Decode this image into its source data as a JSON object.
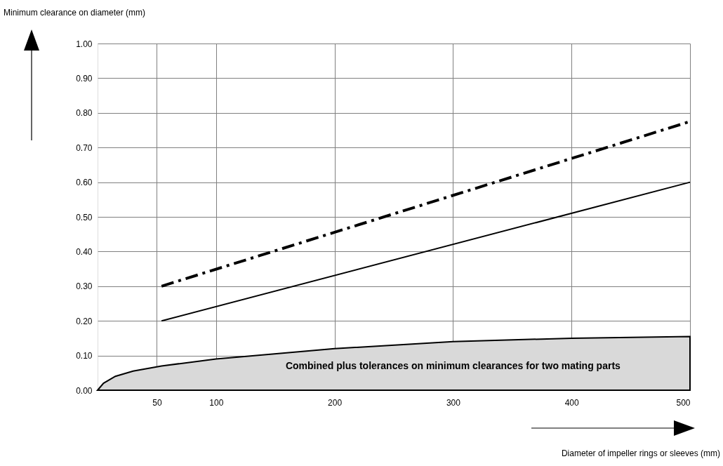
{
  "chart_data": {
    "type": "line",
    "xlabel": "Diameter of impeller rings or sleeves (mm)",
    "ylabel": "Minimum clearance on diameter (mm)",
    "xlim": [
      0,
      500
    ],
    "xticks": [
      50,
      100,
      200,
      300,
      400,
      500
    ],
    "ylim": [
      0,
      1
    ],
    "yticks": [
      {
        "value": 0,
        "label": "0.00"
      },
      {
        "value": 0.1,
        "label": "0.10"
      },
      {
        "value": 0.2,
        "label": "0.20"
      },
      {
        "value": 0.3,
        "label": "0.30"
      },
      {
        "value": 0.4,
        "label": "0.40"
      },
      {
        "value": 0.5,
        "label": "0.50"
      },
      {
        "value": 0.6,
        "label": "0.60"
      },
      {
        "value": 0.7,
        "label": "0.70"
      },
      {
        "value": 0.8,
        "label": "0.80"
      },
      {
        "value": 0.9,
        "label": "0.90"
      },
      {
        "value": 1,
        "label": "1.00"
      }
    ],
    "grid": true,
    "legend": false,
    "series": [
      {
        "name": "Combined plus tolerances on minimum clearances for two mating parts",
        "type": "area",
        "color": "#d9d9d9",
        "x": [
          0,
          5,
          15,
          30,
          54,
          100,
          200,
          300,
          400,
          500
        ],
        "values": [
          0,
          0.02,
          0.04,
          0.055,
          0.07,
          0.09,
          0.12,
          0.14,
          0.15,
          0.155
        ]
      },
      {
        "color": "#000000",
        "line_style": "solid",
        "x": [
          54,
          500
        ],
        "values": [
          0.2,
          0.6
        ]
      },
      {
        "color": "#000000",
        "line_style": "dashed",
        "x": [
          54,
          500
        ],
        "values": [
          0.3,
          0.775
        ]
      }
    ]
  }
}
